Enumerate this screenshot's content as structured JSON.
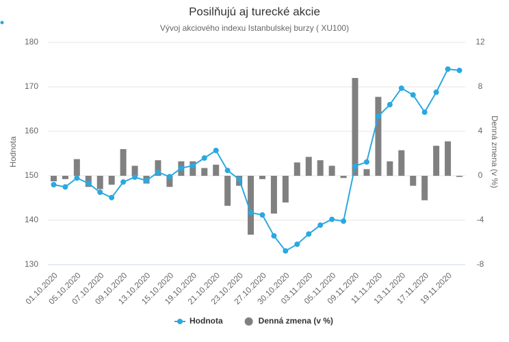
{
  "chart_data": {
    "type": "combo",
    "title": "Posilňujú aj turecké akcie",
    "subtitle": "Vývoj akciového indexu Istanbulskej burzy ( XU100)",
    "y_label": "Hodnota",
    "y2_label": "Denná zmena (v %)",
    "categories": [
      "01.10.2020",
      null,
      "05.10.2020",
      null,
      "07.10.2020",
      null,
      "09.10.2020",
      null,
      "13.10.2020",
      null,
      "15.10.2020",
      null,
      "19.10.2020",
      null,
      "21.10.2020",
      null,
      "23.10.2020",
      null,
      "27.10.2020",
      null,
      "30.10.2020",
      null,
      "03.11.2020",
      null,
      "05.11.2020",
      null,
      "09.11.2020",
      null,
      "11.11.2020",
      null,
      "13.11.2020",
      null,
      "17.11.2020",
      null,
      "19.11.2020",
      null
    ],
    "series": [
      {
        "name": "Hodnota",
        "type": "line",
        "color": "#2aa8e0",
        "values": [
          148.0,
          147.5,
          149.5,
          148.3,
          146.3,
          145.1,
          148.6,
          149.7,
          148.9,
          150.8,
          149.8,
          151.7,
          152.3,
          154.0,
          155.7,
          151.2,
          149.2,
          141.7,
          141.2,
          136.5,
          133.1,
          134.6,
          136.9,
          138.9,
          140.2,
          139.8,
          152.2,
          153.1,
          163.4,
          166.0,
          169.7,
          168.2,
          164.3,
          168.8,
          174.0,
          173.7
        ]
      },
      {
        "name": "Denná zmena (v %)",
        "type": "bar",
        "axis": "y2",
        "color": "#808080",
        "values": [
          -0.5,
          -0.3,
          1.5,
          -1.0,
          -1.2,
          -0.8,
          2.4,
          0.9,
          -0.7,
          1.4,
          -1.0,
          1.3,
          1.3,
          0.7,
          1.0,
          -2.7,
          -0.9,
          -5.3,
          -0.3,
          -3.4,
          -2.4,
          1.2,
          1.7,
          1.4,
          0.9,
          -0.2,
          8.8,
          0.6,
          7.1,
          1.3,
          2.3,
          -0.9,
          -2.2,
          2.7,
          3.1,
          -0.1
        ]
      }
    ],
    "ylim": [
      130,
      180
    ],
    "yticks": [
      130,
      140,
      150,
      160,
      170,
      180
    ],
    "y2lim": [
      -8,
      12
    ],
    "y2ticks": [
      -8,
      -4,
      0,
      4,
      8,
      12
    ],
    "grid": true,
    "legend": "bottom"
  }
}
